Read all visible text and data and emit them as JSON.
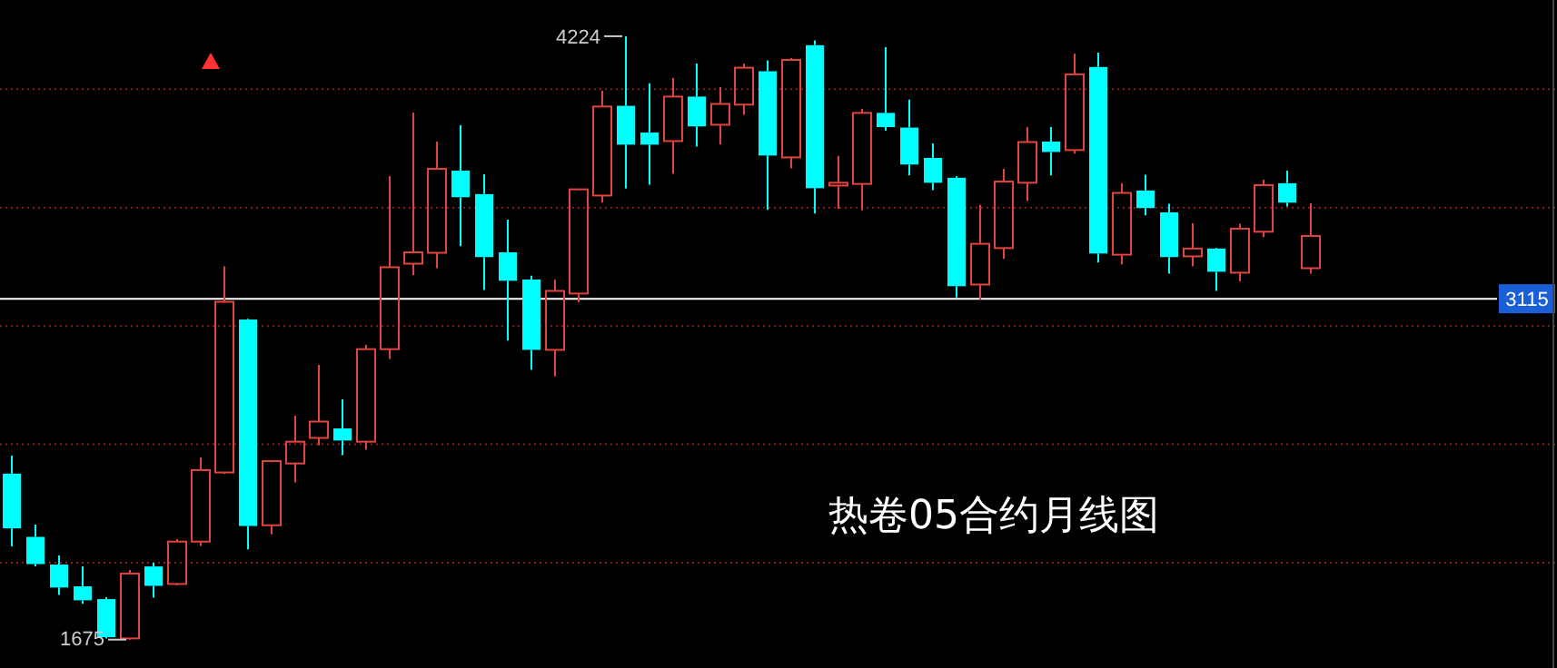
{
  "chart_data": {
    "type": "candlestick",
    "title": "热卷05合约月线图",
    "categories": [
      null,
      null,
      null,
      null,
      null,
      null,
      null,
      null,
      null,
      null,
      null,
      null,
      null,
      null,
      null,
      null,
      null,
      null,
      null,
      null,
      null,
      null,
      null,
      null,
      null,
      null,
      null,
      null,
      null,
      null,
      null,
      null,
      null,
      null,
      null,
      null,
      null,
      null,
      null,
      null,
      null,
      null,
      null,
      null,
      null,
      null,
      null,
      null,
      null,
      null,
      null,
      null,
      null,
      null,
      null,
      null
    ],
    "ohlc": [
      [
        2376,
        2452,
        2069,
        2145
      ],
      [
        2109,
        2161,
        1984,
        1994
      ],
      [
        1992,
        2030,
        1864,
        1895
      ],
      [
        1900,
        1984,
        1826,
        1841
      ],
      [
        1846,
        1854,
        1680,
        1685
      ],
      [
        1680,
        1969,
        1675,
        1954
      ],
      [
        1984,
        2000,
        1852,
        1902
      ],
      [
        1910,
        2099,
        1905,
        2089
      ],
      [
        2089,
        2445,
        2071,
        2391
      ],
      [
        2381,
        3252,
        2375,
        3102
      ],
      [
        3027,
        3030,
        2056,
        2155
      ],
      [
        2158,
        2432,
        2120,
        2429
      ],
      [
        2419,
        2621,
        2339,
        2511
      ],
      [
        2527,
        2836,
        2496,
        2596
      ],
      [
        2567,
        2690,
        2454,
        2516
      ],
      [
        2511,
        2920,
        2477,
        2902
      ],
      [
        2902,
        3633,
        2861,
        3248
      ],
      [
        3263,
        3902,
        3214,
        3311
      ],
      [
        3309,
        3779,
        3244,
        3664
      ],
      [
        3656,
        3848,
        3337,
        3544
      ],
      [
        3557,
        3641,
        3152,
        3291
      ],
      [
        3311,
        3449,
        2938,
        3191
      ],
      [
        3196,
        3212,
        2815,
        2899
      ],
      [
        2899,
        3196,
        2787,
        3148
      ],
      [
        3137,
        3580,
        3099,
        3577
      ],
      [
        3551,
        3994,
        3521,
        3927
      ],
      [
        3930,
        4224,
        3580,
        3766
      ],
      [
        3817,
        4025,
        3597,
        3766
      ],
      [
        3781,
        4048,
        3643,
        3969
      ],
      [
        3969,
        4109,
        3758,
        3843
      ],
      [
        3850,
        4009,
        3766,
        3938
      ],
      [
        3935,
        4109,
        3892,
        4091
      ],
      [
        4076,
        4122,
        3490,
        3720
      ],
      [
        3712,
        4132,
        3666,
        4124
      ],
      [
        4186,
        4206,
        3475,
        3582
      ],
      [
        3593,
        3718,
        3495,
        3605
      ],
      [
        3600,
        3917,
        3488,
        3900
      ],
      [
        3900,
        4178,
        3825,
        3840
      ],
      [
        3838,
        3956,
        3636,
        3682
      ],
      [
        3710,
        3771,
        3574,
        3605
      ],
      [
        3626,
        3633,
        3120,
        3168
      ],
      [
        3175,
        3511,
        3112,
        3347
      ],
      [
        3329,
        3664,
        3283,
        3610
      ],
      [
        3605,
        3840,
        3528,
        3777
      ],
      [
        3779,
        3840,
        3636,
        3735
      ],
      [
        3743,
        4150,
        3728,
        4063
      ],
      [
        4094,
        4155,
        3268,
        3306
      ],
      [
        3301,
        3603,
        3260,
        3562
      ],
      [
        3572,
        3639,
        3467,
        3498
      ],
      [
        3480,
        3516,
        3221,
        3291
      ],
      [
        3294,
        3434,
        3252,
        3327
      ],
      [
        3327,
        3330,
        3148,
        3229
      ],
      [
        3225,
        3432,
        3188,
        3411
      ],
      [
        3398,
        3618,
        3375,
        3595
      ],
      [
        3603,
        3656,
        3505,
        3521
      ],
      [
        3244,
        3518,
        3221,
        3380
      ]
    ],
    "colors": [
      "#00ffff",
      "#00ffff",
      "#00ffff",
      "#00ffff",
      "#00ffff",
      "#e0443e",
      "#00ffff",
      "#e0443e",
      "#e0443e",
      "#e0443e",
      "#00ffff",
      "#e0443e",
      "#e0443e",
      "#e0443e",
      "#00ffff",
      "#e0443e",
      "#e0443e",
      "#e0443e",
      "#e0443e",
      "#00ffff",
      "#00ffff",
      "#00ffff",
      "#00ffff",
      "#e0443e",
      "#e0443e",
      "#e0443e",
      "#00ffff",
      "#00ffff",
      "#e0443e",
      "#00ffff",
      "#e0443e",
      "#e0443e",
      "#00ffff",
      "#e0443e",
      "#00ffff",
      "#e0443e",
      "#e0443e",
      "#00ffff",
      "#00ffff",
      "#00ffff",
      "#00ffff",
      "#e0443e",
      "#e0443e",
      "#e0443e",
      "#00ffff",
      "#e0443e",
      "#00ffff",
      "#e0443e",
      "#00ffff",
      "#00ffff",
      "#e0443e",
      "#00ffff",
      "#e0443e",
      "#e0443e",
      "#00ffff",
      "#e0443e"
    ],
    "ylim": [
      1555,
      4377
    ],
    "yticks": [
      {
        "value": 2000,
        "label": null
      },
      {
        "value": 2500,
        "label": null
      },
      {
        "value": 3000,
        "label": null
      },
      {
        "value": 3500,
        "label": null
      },
      {
        "value": 4000,
        "label": null
      }
    ],
    "grid": "y",
    "ref_lines": [
      {
        "axis": "y",
        "value": 3115,
        "label": "3115",
        "color": "#ffffff"
      }
    ],
    "annotations": [
      "4224",
      "1675"
    ]
  }
}
